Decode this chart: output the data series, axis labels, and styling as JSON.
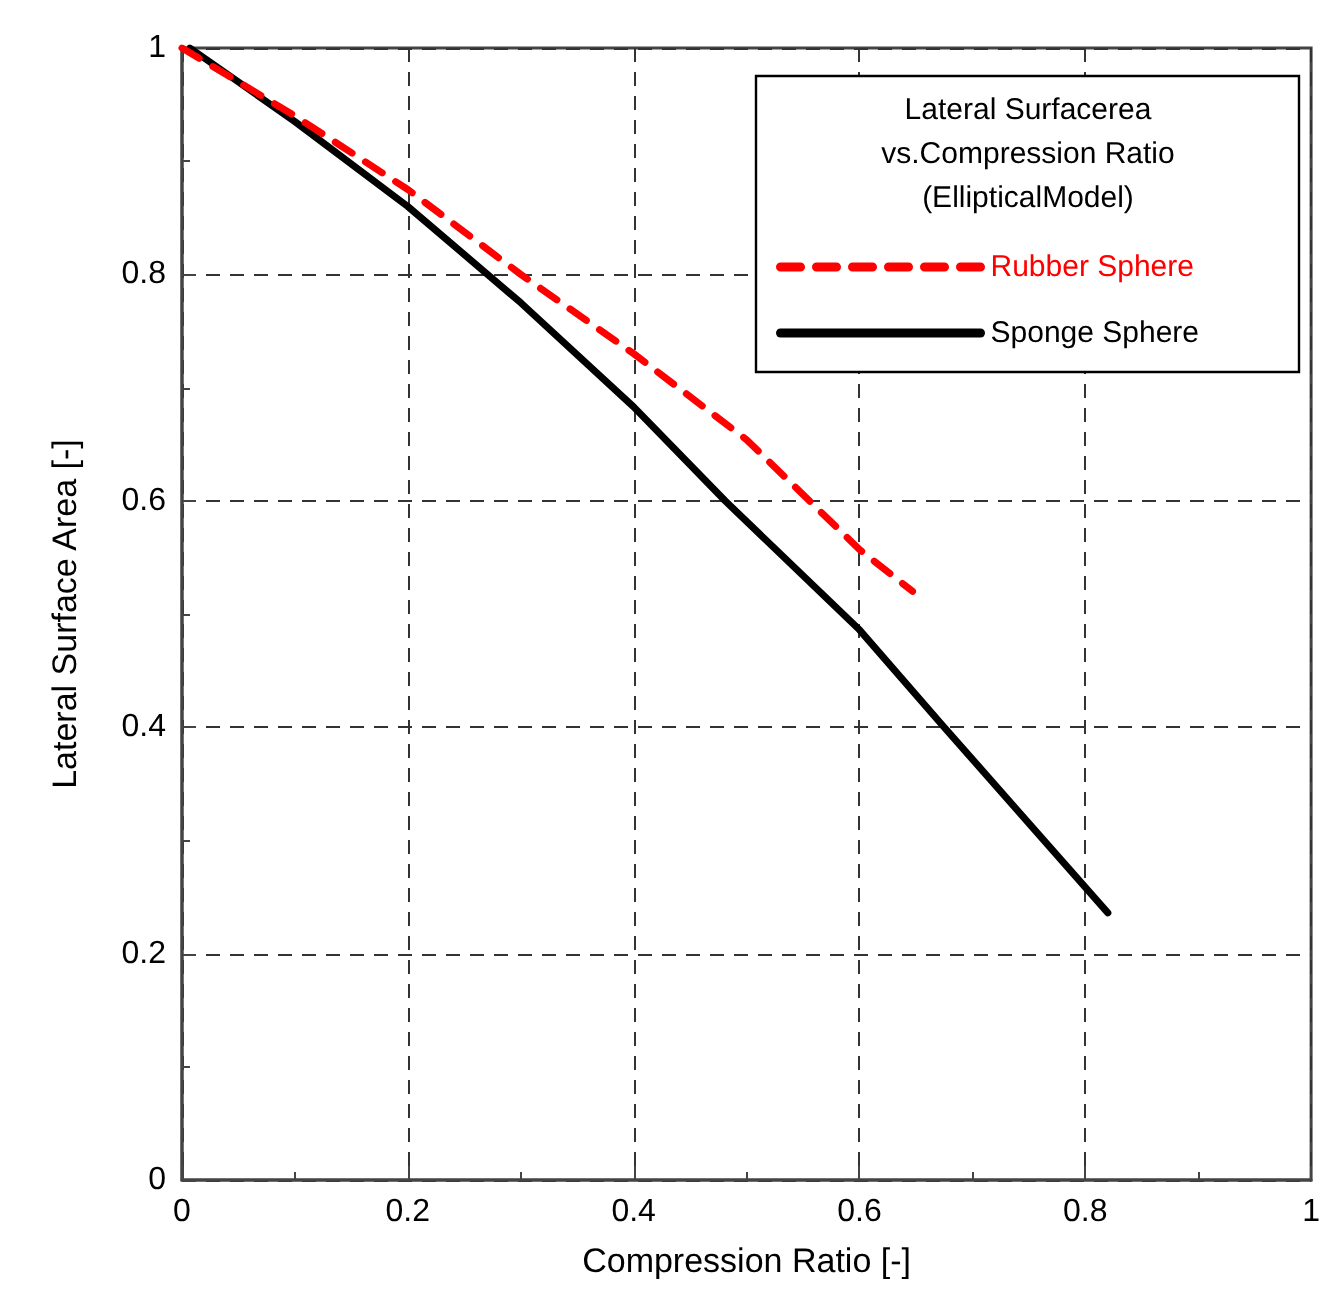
{
  "chart_data": {
    "type": "line",
    "xlabel": "Compression Ratio [-]",
    "ylabel": "Lateral Surface Area [-]",
    "legend_title": "Lateral Surfacerea\nvs.Compression Ratio\n(EllipticalModel)",
    "series": [
      {
        "name": "Rubber Sphere",
        "color": "#ff0000",
        "line_style": "dashed",
        "x": [
          0,
          0.1,
          0.2,
          0.3,
          0.4,
          0.5,
          0.6,
          0.647
        ],
        "values": [
          1.0,
          0.94,
          0.875,
          0.8,
          0.73,
          0.654,
          0.557,
          0.52
        ]
      },
      {
        "name": "Sponge Sphere",
        "color": "#000000",
        "line_style": "solid",
        "x": [
          0.007,
          0.1,
          0.2,
          0.3,
          0.4,
          0.481,
          0.6,
          0.675,
          0.82
        ],
        "values": [
          1.0,
          0.935,
          0.86,
          0.775,
          0.683,
          0.6,
          0.486,
          0.4,
          0.236
        ]
      }
    ],
    "xlim": [
      0,
      1
    ],
    "xticks": [
      0,
      0.2,
      0.4,
      0.6,
      0.8,
      1
    ],
    "ylim": [
      0,
      1
    ],
    "yticks": [
      0,
      0.2,
      0.4,
      0.6,
      0.8,
      1
    ],
    "grid": true,
    "legend": "top right",
    "marker": "none"
  }
}
